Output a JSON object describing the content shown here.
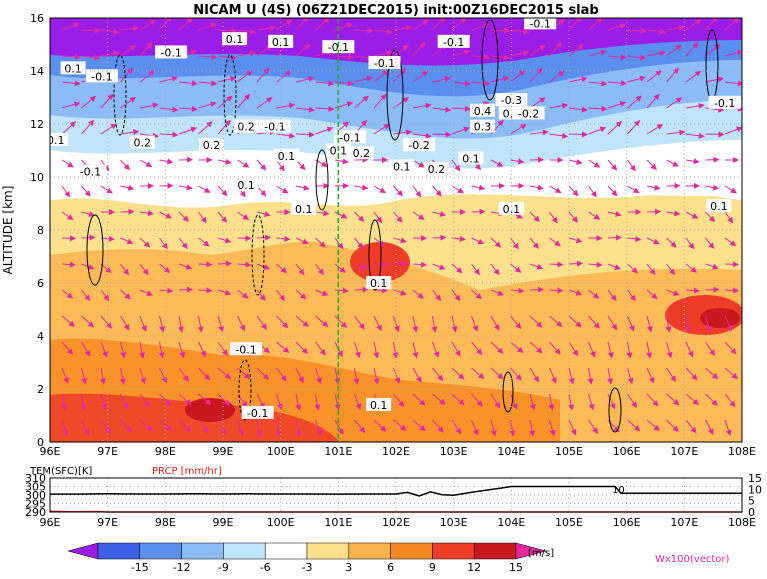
{
  "chart_data": [
    {
      "type": "heatmap",
      "title": "NICAM U (4S) (06Z21DEC2015) init:00Z16DEC2015 slab",
      "ylabel": "ALTITUDE [km]",
      "x_ticks": [
        "96E",
        "97E",
        "98E",
        "99E",
        "100E",
        "101E",
        "102E",
        "103E",
        "104E",
        "105E",
        "106E",
        "107E",
        "108E"
      ],
      "y_ticks": [
        "0",
        "2",
        "4",
        "6",
        "8",
        "10",
        "12",
        "14",
        "16"
      ],
      "xlim": [
        96,
        108
      ],
      "ylim": [
        0,
        16
      ],
      "grid": "on (dotted)",
      "marker_longitude": 101,
      "contour_labels": [
        {
          "text": "0.1",
          "x": 96.4,
          "y": 14.1
        },
        {
          "text": "-0.1",
          "x": 96.9,
          "y": 13.8
        },
        {
          "text": "0.1",
          "x": 96.1,
          "y": 11.4
        },
        {
          "text": "0.2",
          "x": 97.6,
          "y": 11.3
        },
        {
          "text": "-0.1",
          "x": 96.7,
          "y": 10.2
        },
        {
          "text": "-0.1",
          "x": 98.1,
          "y": 14.7
        },
        {
          "text": "0.1",
          "x": 99.2,
          "y": 15.2
        },
        {
          "text": "0.1",
          "x": 100.0,
          "y": 15.1
        },
        {
          "text": "0.2",
          "x": 98.8,
          "y": 11.2
        },
        {
          "text": "0.2",
          "x": 99.4,
          "y": 11.9
        },
        {
          "text": "-0.1",
          "x": 99.9,
          "y": 11.9
        },
        {
          "text": "0.1",
          "x": 100.1,
          "y": 10.8
        },
        {
          "text": "0.1",
          "x": 99.4,
          "y": 9.7
        },
        {
          "text": "0.1",
          "x": 100.4,
          "y": 8.8
        },
        {
          "text": "-0.1",
          "x": 101.0,
          "y": 14.9
        },
        {
          "text": "-0.1",
          "x": 101.8,
          "y": 14.3
        },
        {
          "text": "-0.1",
          "x": 101.2,
          "y": 11.5
        },
        {
          "text": "0.1",
          "x": 101.0,
          "y": 11.0
        },
        {
          "text": "0.2",
          "x": 101.4,
          "y": 10.9
        },
        {
          "text": "-0.2",
          "x": 102.4,
          "y": 11.2
        },
        {
          "text": "0.1",
          "x": 102.1,
          "y": 10.4
        },
        {
          "text": "0.2",
          "x": 102.7,
          "y": 10.3
        },
        {
          "text": "-0.1",
          "x": 103.0,
          "y": 15.1
        },
        {
          "text": "0.4",
          "x": 103.5,
          "y": 12.5
        },
        {
          "text": "0.3",
          "x": 103.5,
          "y": 11.9
        },
        {
          "text": "0.1",
          "x": 103.3,
          "y": 10.7
        },
        {
          "text": "-0.3",
          "x": 104.0,
          "y": 12.9
        },
        {
          "text": "0.2",
          "x": 104.0,
          "y": 12.4
        },
        {
          "text": "-0.2",
          "x": 104.3,
          "y": 12.4
        },
        {
          "text": "-0.1",
          "x": 104.5,
          "y": 15.8
        },
        {
          "text": "0.1",
          "x": 104.0,
          "y": 8.8
        },
        {
          "text": "0.1",
          "x": 101.7,
          "y": 6.0
        },
        {
          "text": "-0.1",
          "x": 99.4,
          "y": 3.5
        },
        {
          "text": "-0.1",
          "x": 99.6,
          "y": 1.1
        },
        {
          "text": "0.1",
          "x": 101.7,
          "y": 1.4
        },
        {
          "text": "-0.1",
          "x": 107.7,
          "y": 12.8
        },
        {
          "text": "0.1",
          "x": 107.6,
          "y": 8.9
        }
      ]
    },
    {
      "type": "line",
      "series": [
        {
          "name": "TEM(SFC)[K]",
          "x": [
            96,
            96.5,
            97,
            97.5,
            98,
            98.5,
            99,
            99.5,
            100,
            100.5,
            101,
            101.5,
            102,
            102.2,
            102.4,
            102.6,
            102.8,
            103,
            103.3,
            103.6,
            103.8,
            104,
            105,
            105.8,
            105.9,
            106,
            106.5,
            107,
            108
          ],
          "values": [
            300.5,
            300.5,
            300.7,
            300.6,
            300.6,
            300.7,
            300.6,
            300.7,
            300.6,
            300.6,
            300.5,
            300.6,
            300.6,
            301.5,
            299.5,
            301.8,
            300.2,
            299.8,
            301.5,
            303,
            304,
            305,
            305,
            305,
            301,
            301,
            301,
            301,
            301
          ]
        },
        {
          "name": "PRCP [mm/hr]",
          "x": [
            96,
            96.4,
            96.8,
            97,
            98,
            99,
            100,
            101,
            102,
            103,
            104,
            105,
            106,
            107,
            108
          ],
          "values": [
            0.3,
            0.1,
            0.2,
            0,
            0,
            0,
            0,
            0,
            0,
            0,
            0,
            0,
            0,
            0,
            0
          ]
        }
      ],
      "y_ticks_left": [
        "310",
        "305",
        "300",
        "295",
        "290"
      ],
      "y_ticks_right": [
        "15",
        "10",
        "5",
        "0"
      ],
      "ylim_left": [
        290,
        310
      ],
      "ylim_right": [
        0,
        15
      ],
      "x_ticks": [
        "96E",
        "97E",
        "98E",
        "99E",
        "100E",
        "101E",
        "102E",
        "103E",
        "104E",
        "105E",
        "106E",
        "107E",
        "108E"
      ],
      "annotation": "10"
    }
  ],
  "colorbar": {
    "ticks": [
      "-15",
      "-12",
      "-9",
      "-6",
      "-3",
      "3",
      "6",
      "9",
      "12",
      "15"
    ],
    "unit": "[m/s]",
    "colors": [
      "#9a1ee8",
      "#3c5fe6",
      "#5a8ff0",
      "#8cbcf8",
      "#bfe4fc",
      "#ffffff",
      "#fce08c",
      "#fbb44c",
      "#f7881e",
      "#ee3c28",
      "#c8181e",
      "#e628a0"
    ]
  },
  "vector_label": "Wx100(vector)"
}
